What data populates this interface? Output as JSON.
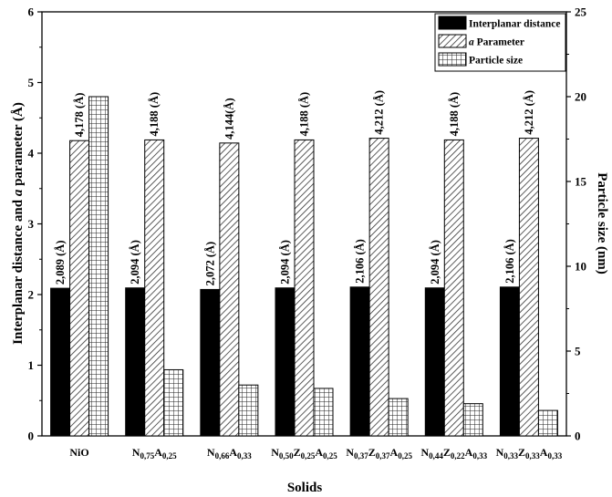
{
  "chart_data": {
    "type": "bar",
    "xlabel": "Solids",
    "ylabel_parts": [
      "Interplanar distance and ",
      "a",
      " parameter (Å)"
    ],
    "y2label": "Particle size (nm)",
    "ylim": [
      0,
      6
    ],
    "y2lim": [
      0,
      25
    ],
    "yticks": [
      "0",
      "1",
      "2",
      "3",
      "4",
      "5",
      "6"
    ],
    "y2ticks": [
      "0",
      "5",
      "10",
      "15",
      "20",
      "25"
    ],
    "categories": [
      [
        {
          "t": "NiO",
          "s": false
        }
      ],
      [
        {
          "t": "N",
          "s": false
        },
        {
          "t": "0,75",
          "s": true
        },
        {
          "t": "A",
          "s": false
        },
        {
          "t": "0,25",
          "s": true
        }
      ],
      [
        {
          "t": "N",
          "s": false
        },
        {
          "t": "0,66",
          "s": true
        },
        {
          "t": "A",
          "s": false
        },
        {
          "t": "0,33",
          "s": true
        }
      ],
      [
        {
          "t": "N",
          "s": false
        },
        {
          "t": "0,50",
          "s": true
        },
        {
          "t": "Z",
          "s": false
        },
        {
          "t": "0,25",
          "s": true
        },
        {
          "t": "A",
          "s": false
        },
        {
          "t": "0,25",
          "s": true
        }
      ],
      [
        {
          "t": "N",
          "s": false
        },
        {
          "t": "0,37",
          "s": true
        },
        {
          "t": "Z",
          "s": false
        },
        {
          "t": "0,37",
          "s": true
        },
        {
          "t": "A",
          "s": false
        },
        {
          "t": "0,25",
          "s": true
        }
      ],
      [
        {
          "t": "N",
          "s": false
        },
        {
          "t": "0,44",
          "s": true
        },
        {
          "t": "Z",
          "s": false
        },
        {
          "t": "0,22",
          "s": true
        },
        {
          "t": "A",
          "s": false
        },
        {
          "t": "0,33",
          "s": true
        }
      ],
      [
        {
          "t": "N",
          "s": false
        },
        {
          "t": "0,33",
          "s": true
        },
        {
          "t": "Z",
          "s": false
        },
        {
          "t": "0,33",
          "s": true
        },
        {
          "t": "A",
          "s": false
        },
        {
          "t": "0,33",
          "s": true
        }
      ]
    ],
    "series": [
      {
        "name": "Interplanar distance",
        "axis": "left",
        "pattern": "solid",
        "values": [
          2.089,
          2.094,
          2.072,
          2.094,
          2.106,
          2.094,
          2.106
        ],
        "labels": [
          "2,089 (Å)",
          "2,094 (Å)",
          "2,072 (Å)",
          "2,094 (Å)",
          "2,106 (Å)",
          "2,094 (Å)",
          "2,106 (Å)"
        ]
      },
      {
        "name": "a Parameter",
        "name_parts": [
          "a",
          " Parameter"
        ],
        "axis": "left",
        "pattern": "diagonal",
        "values": [
          4.178,
          4.188,
          4.144,
          4.188,
          4.212,
          4.188,
          4.212
        ],
        "labels": [
          "4,178 (Å)",
          "4,188 (Å)",
          "4,144(Å)",
          "4,188 (Å)",
          "4,212 (Å)",
          "4,188 (Å)",
          "4,212 (Å)"
        ]
      },
      {
        "name": "Particle size",
        "axis": "right",
        "pattern": "grid",
        "values": [
          20,
          3.9,
          3.0,
          2.8,
          2.2,
          1.9,
          1.5
        ]
      }
    ],
    "legend": {
      "position": "top-right"
    }
  }
}
